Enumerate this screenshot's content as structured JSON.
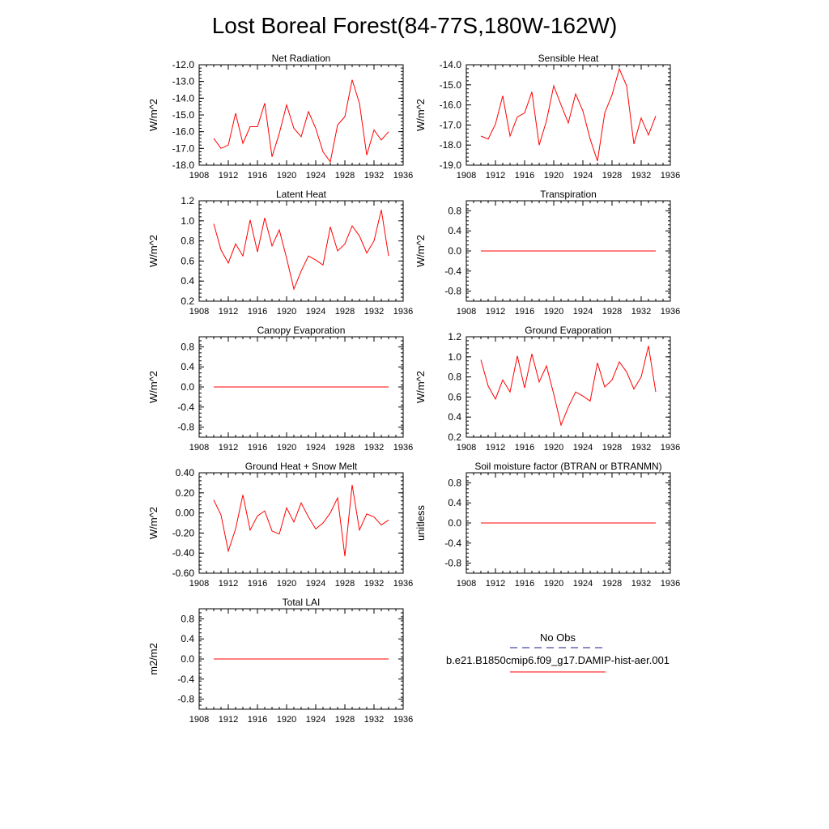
{
  "title": "Lost Boreal Forest(84-77S,180W-162W)",
  "legend": {
    "obs_label": "No Obs",
    "obs_color": "#1a1a8c",
    "model_label": "b.e21.B1850cmip6.f09_g17.DAMIP-hist-aer.001",
    "model_color": "#ff0000"
  },
  "chart_data": [
    {
      "type": "line",
      "title": "Net Radiation",
      "ylabel": "W/m^2",
      "xlim": [
        1908,
        1936
      ],
      "xticks": [
        "1908",
        "1912",
        "1916",
        "1920",
        "1924",
        "1928",
        "1932",
        "1936"
      ],
      "ylim": [
        -18.0,
        -12.0
      ],
      "yticks": [
        "-18.0",
        "-17.0",
        "-16.0",
        "-15.0",
        "-14.0",
        "-13.0",
        "-12.0"
      ],
      "series": [
        {
          "x": [
            1910,
            1911,
            1912,
            1913,
            1914,
            1915,
            1916,
            1917,
            1918,
            1919,
            1920,
            1921,
            1922,
            1923,
            1924,
            1925,
            1926,
            1927,
            1928,
            1929,
            1930,
            1931,
            1932,
            1933,
            1934
          ],
          "y": [
            -16.4,
            -17.0,
            -16.8,
            -14.9,
            -16.7,
            -15.7,
            -15.7,
            -14.3,
            -17.5,
            -16.1,
            -14.4,
            -15.8,
            -16.3,
            -14.8,
            -15.8,
            -17.2,
            -17.8,
            -15.6,
            -15.1,
            -12.9,
            -14.3,
            -17.4,
            -15.9,
            -16.5,
            -16.0
          ]
        }
      ]
    },
    {
      "type": "line",
      "title": "Sensible Heat",
      "ylabel": "W/m^2",
      "xlim": [
        1908,
        1936
      ],
      "xticks": [
        "1908",
        "1912",
        "1916",
        "1920",
        "1924",
        "1928",
        "1932",
        "1936"
      ],
      "ylim": [
        -19.0,
        -14.0
      ],
      "yticks": [
        "-19.0",
        "-18.0",
        "-17.0",
        "-16.0",
        "-15.0",
        "-14.0"
      ],
      "series": [
        {
          "x": [
            1910,
            1911,
            1912,
            1913,
            1914,
            1915,
            1916,
            1917,
            1918,
            1919,
            1920,
            1921,
            1922,
            1923,
            1924,
            1925,
            1926,
            1927,
            1928,
            1929,
            1930,
            1931,
            1932,
            1933,
            1934
          ],
          "y": [
            -17.55,
            -17.7,
            -16.95,
            -15.55,
            -17.55,
            -16.6,
            -16.4,
            -15.35,
            -18.0,
            -16.8,
            -15.05,
            -16.0,
            -16.9,
            -15.45,
            -16.3,
            -17.7,
            -18.8,
            -16.4,
            -15.5,
            -14.2,
            -15.05,
            -17.95,
            -16.65,
            -17.5,
            -16.55
          ]
        }
      ]
    },
    {
      "type": "line",
      "title": "Latent Heat",
      "ylabel": "W/m^2",
      "xlim": [
        1908,
        1936
      ],
      "xticks": [
        "1908",
        "1912",
        "1916",
        "1920",
        "1924",
        "1928",
        "1932",
        "1936"
      ],
      "ylim": [
        0.2,
        1.2
      ],
      "yticks": [
        "0.2",
        "0.4",
        "0.6",
        "0.8",
        "1.0",
        "1.2"
      ],
      "series": [
        {
          "x": [
            1910,
            1911,
            1912,
            1913,
            1914,
            1915,
            1916,
            1917,
            1918,
            1919,
            1920,
            1921,
            1922,
            1923,
            1924,
            1925,
            1926,
            1927,
            1928,
            1929,
            1930,
            1931,
            1932,
            1933,
            1934
          ],
          "y": [
            0.97,
            0.71,
            0.58,
            0.77,
            0.65,
            1.01,
            0.69,
            1.03,
            0.75,
            0.91,
            0.63,
            0.32,
            0.5,
            0.65,
            0.61,
            0.56,
            0.94,
            0.7,
            0.77,
            0.95,
            0.85,
            0.68,
            0.8,
            1.11,
            0.65
          ]
        }
      ]
    },
    {
      "type": "line",
      "title": "Transpiration",
      "ylabel": "W/m^2",
      "xlim": [
        1908,
        1936
      ],
      "xticks": [
        "1908",
        "1912",
        "1916",
        "1920",
        "1924",
        "1928",
        "1932",
        "1936"
      ],
      "ylim": [
        -1.0,
        1.0
      ],
      "yticks": [
        "-0.8",
        "-0.4",
        "0.0",
        "0.4",
        "0.8"
      ],
      "series": [
        {
          "x": [
            1910,
            1934
          ],
          "y": [
            0.0,
            0.0
          ]
        }
      ]
    },
    {
      "type": "line",
      "title": "Canopy Evaporation",
      "ylabel": "W/m^2",
      "xlim": [
        1908,
        1936
      ],
      "xticks": [
        "1908",
        "1912",
        "1916",
        "1920",
        "1924",
        "1928",
        "1932",
        "1936"
      ],
      "ylim": [
        -1.0,
        1.0
      ],
      "yticks": [
        "-0.8",
        "-0.4",
        "0.0",
        "0.4",
        "0.8"
      ],
      "series": [
        {
          "x": [
            1910,
            1934
          ],
          "y": [
            0.0,
            0.0
          ]
        }
      ]
    },
    {
      "type": "line",
      "title": "Ground Evaporation",
      "ylabel": "W/m^2",
      "xlim": [
        1908,
        1936
      ],
      "xticks": [
        "1908",
        "1912",
        "1916",
        "1920",
        "1924",
        "1928",
        "1932",
        "1936"
      ],
      "ylim": [
        0.2,
        1.2
      ],
      "yticks": [
        "0.2",
        "0.4",
        "0.6",
        "0.8",
        "1.0",
        "1.2"
      ],
      "series": [
        {
          "x": [
            1910,
            1911,
            1912,
            1913,
            1914,
            1915,
            1916,
            1917,
            1918,
            1919,
            1920,
            1921,
            1922,
            1923,
            1924,
            1925,
            1926,
            1927,
            1928,
            1929,
            1930,
            1931,
            1932,
            1933,
            1934
          ],
          "y": [
            0.97,
            0.71,
            0.58,
            0.77,
            0.65,
            1.01,
            0.69,
            1.03,
            0.75,
            0.91,
            0.63,
            0.32,
            0.5,
            0.65,
            0.61,
            0.56,
            0.94,
            0.7,
            0.77,
            0.95,
            0.85,
            0.68,
            0.8,
            1.11,
            0.65
          ]
        }
      ]
    },
    {
      "type": "line",
      "title": "Ground Heat + Snow Melt",
      "ylabel": "W/m^2",
      "xlim": [
        1908,
        1936
      ],
      "xticks": [
        "1908",
        "1912",
        "1916",
        "1920",
        "1924",
        "1928",
        "1932",
        "1936"
      ],
      "ylim": [
        -0.6,
        0.4
      ],
      "yticks": [
        "-0.60",
        "-0.40",
        "-0.20",
        "0.00",
        "0.20",
        "0.40"
      ],
      "series": [
        {
          "x": [
            1910,
            1911,
            1912,
            1913,
            1914,
            1915,
            1916,
            1917,
            1918,
            1919,
            1920,
            1921,
            1922,
            1923,
            1924,
            1925,
            1926,
            1927,
            1928,
            1929,
            1930,
            1931,
            1932,
            1933,
            1934
          ],
          "y": [
            0.13,
            -0.02,
            -0.38,
            -0.16,
            0.18,
            -0.17,
            -0.03,
            0.02,
            -0.18,
            -0.21,
            0.05,
            -0.09,
            0.1,
            -0.04,
            -0.16,
            -0.1,
            0.0,
            0.15,
            -0.43,
            0.28,
            -0.17,
            -0.01,
            -0.04,
            -0.12,
            -0.07
          ]
        }
      ]
    },
    {
      "type": "line",
      "title": "Soil moisture factor (BTRAN or BTRANMN)",
      "ylabel": "unitless",
      "xlim": [
        1908,
        1936
      ],
      "xticks": [
        "1908",
        "1912",
        "1916",
        "1920",
        "1924",
        "1928",
        "1932",
        "1936"
      ],
      "ylim": [
        -1.0,
        1.0
      ],
      "yticks": [
        "-0.8",
        "-0.4",
        "0.0",
        "0.4",
        "0.8"
      ],
      "series": [
        {
          "x": [
            1910,
            1934
          ],
          "y": [
            0.0,
            0.0
          ]
        }
      ]
    },
    {
      "type": "line",
      "title": "Total LAI",
      "ylabel": "m2/m2",
      "xlim": [
        1908,
        1936
      ],
      "xticks": [
        "1908",
        "1912",
        "1916",
        "1920",
        "1924",
        "1928",
        "1932",
        "1936"
      ],
      "ylim": [
        -1.0,
        1.0
      ],
      "yticks": [
        "-0.8",
        "-0.4",
        "0.0",
        "0.4",
        "0.8"
      ],
      "series": [
        {
          "x": [
            1910,
            1934
          ],
          "y": [
            0.0,
            0.0
          ]
        }
      ]
    }
  ]
}
